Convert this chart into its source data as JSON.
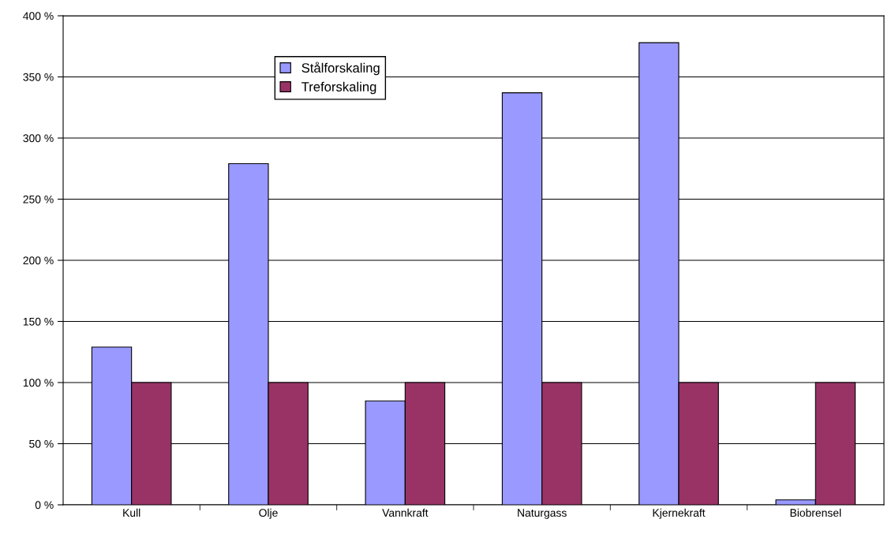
{
  "chart_data": {
    "type": "bar",
    "categories": [
      "Kull",
      "Olje",
      "Vannkraft",
      "Naturgass",
      "Kjernekraft",
      "Biobrensel"
    ],
    "series": [
      {
        "name": "Stålforskaling",
        "color": "#9999ff",
        "values": [
          129,
          279,
          85,
          337,
          378,
          4
        ]
      },
      {
        "name": "Treforskaling",
        "color": "#993366",
        "values": [
          100,
          100,
          100,
          100,
          100,
          100
        ]
      }
    ],
    "ylim": [
      0,
      400
    ],
    "yticks": [
      {
        "value": 0,
        "label": "0 %"
      },
      {
        "value": 50,
        "label": "50 %"
      },
      {
        "value": 100,
        "label": "100 %"
      },
      {
        "value": 150,
        "label": "150 %"
      },
      {
        "value": 200,
        "label": "200 %"
      },
      {
        "value": 250,
        "label": "250 %"
      },
      {
        "value": 300,
        "label": "300 %"
      },
      {
        "value": 350,
        "label": "350 %"
      },
      {
        "value": 400,
        "label": "400 %"
      }
    ],
    "grid": "y",
    "legend": "top left"
  }
}
